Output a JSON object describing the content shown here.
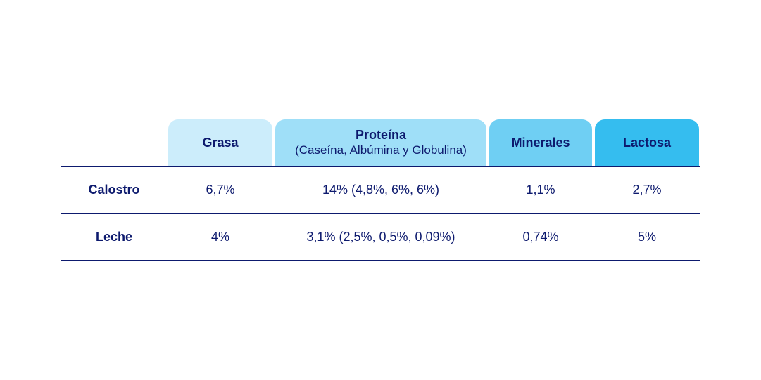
{
  "colors": {
    "text": "#0d1a6e",
    "grasa_header": "#ccedfb",
    "proteina_header": "#9fdff8",
    "minerales_header": "#6fcff3",
    "lactosa_header": "#35bdef",
    "rule": "#0d1a6e"
  },
  "table": {
    "headers": {
      "grasa": "Grasa",
      "proteina": "Proteína",
      "proteina_sub": "(Caseína, Albúmina y Globulina)",
      "minerales": "Minerales",
      "lactosa": "Lactosa"
    },
    "rows": [
      {
        "label": "Calostro",
        "grasa": "6,7%",
        "proteina": "14% (4,8%, 6%, 6%)",
        "minerales": "1,1%",
        "lactosa": "2,7%"
      },
      {
        "label": "Leche",
        "grasa": "4%",
        "proteina": "3,1% (2,5%, 0,5%, 0,09%)",
        "minerales": "0,74%",
        "lactosa": "5%"
      }
    ]
  }
}
